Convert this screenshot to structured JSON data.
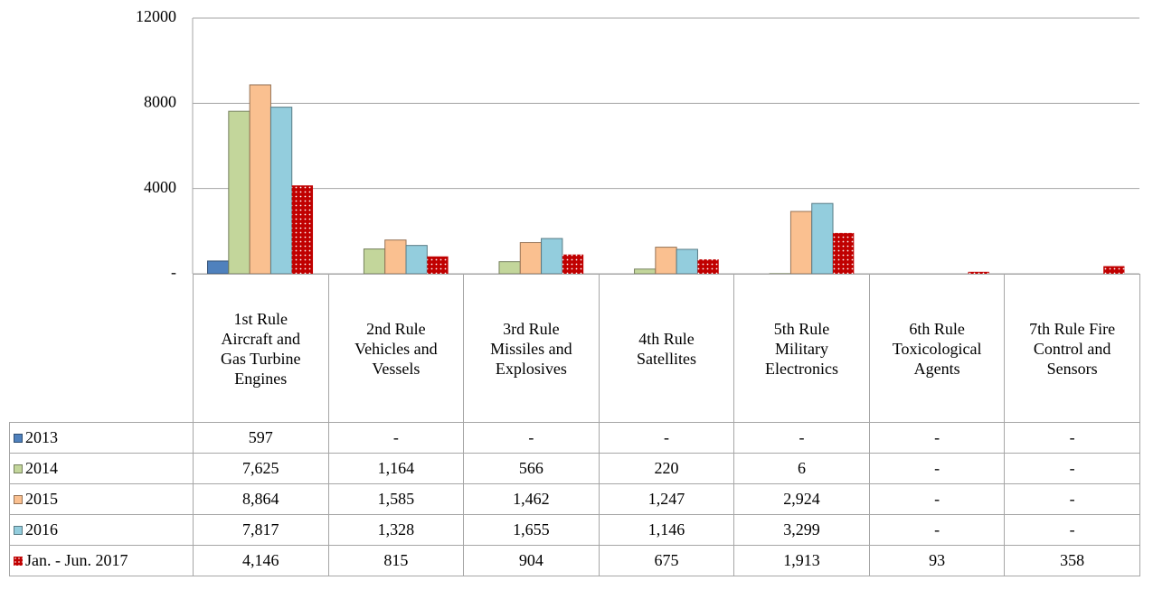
{
  "chart_data": {
    "type": "bar",
    "categories": [
      "1st Rule Aircraft and Gas Turbine Engines",
      "2nd Rule Vehicles and Vessels",
      "3rd Rule Missiles and Explosives",
      "4th Rule Satellites",
      "5th Rule Military Electronics",
      "6th Rule Toxicological Agents",
      "7th Rule Fire Control and Sensors"
    ],
    "series": [
      {
        "name": "2013",
        "color": "#4f81bd",
        "values": [
          597,
          null,
          null,
          null,
          null,
          null,
          null
        ],
        "value_labels": [
          "597",
          "-",
          "-",
          "-",
          "-",
          "-",
          "-"
        ]
      },
      {
        "name": "2014",
        "color": "#c3d69b",
        "values": [
          7625,
          1164,
          566,
          220,
          6,
          null,
          null
        ],
        "value_labels": [
          "7,625",
          "1,164",
          "566",
          "220",
          "6",
          "-",
          "-"
        ]
      },
      {
        "name": "2015",
        "color": "#fac090",
        "values": [
          8864,
          1585,
          1462,
          1247,
          2924,
          null,
          null
        ],
        "value_labels": [
          "8,864",
          "1,585",
          "1,462",
          "1,247",
          "2,924",
          "-",
          "-"
        ]
      },
      {
        "name": "2016",
        "color": "#93cddd",
        "values": [
          7817,
          1328,
          1655,
          1146,
          3299,
          null,
          null
        ],
        "value_labels": [
          "7,817",
          "1,328",
          "1,655",
          "1,146",
          "3,299",
          "-",
          "-"
        ]
      },
      {
        "name": "Jan. - Jun. 2017",
        "color": "#c00000",
        "values": [
          4146,
          815,
          904,
          675,
          1913,
          93,
          358
        ],
        "value_labels": [
          "4,146",
          "815",
          "904",
          "675",
          "1,913",
          "93",
          "358"
        ]
      }
    ],
    "ylim": [
      0,
      12000
    ],
    "yticks": [
      {
        "value": 0,
        "label": "-"
      },
      4000,
      8000,
      12000
    ],
    "grid": true
  }
}
